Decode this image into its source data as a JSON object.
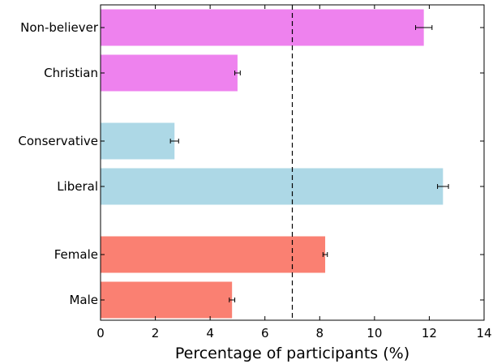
{
  "chart_data": {
    "type": "bar",
    "orientation": "horizontal",
    "xlabel": "Percentage of participants (%)",
    "xlim": [
      0,
      14
    ],
    "xticks": [
      0,
      2,
      4,
      6,
      8,
      10,
      12,
      14
    ],
    "reference_line": {
      "x": 7,
      "style": "dashed"
    },
    "grid": false,
    "categories": [
      "Non-believer",
      "Christian",
      "Conservative",
      "Liberal",
      "Female",
      "Male"
    ],
    "values": [
      11.8,
      5.0,
      2.7,
      12.5,
      8.2,
      4.8
    ],
    "errors": [
      0.3,
      0.1,
      0.15,
      0.2,
      0.08,
      0.1
    ],
    "colors": [
      "#ee82ee",
      "#ee82ee",
      "#add8e6",
      "#add8e6",
      "#fa8072",
      "#fa8072"
    ]
  }
}
